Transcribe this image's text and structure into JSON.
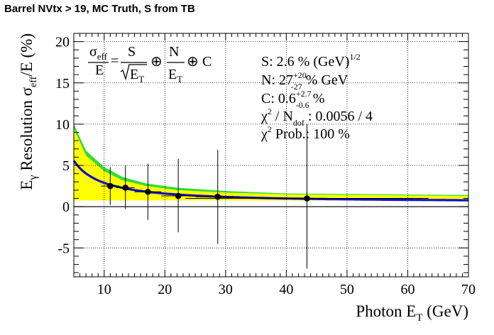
{
  "chart_data": {
    "type": "scatter",
    "title": "Barrel NVtx > 19, MC Truth, S from TB",
    "xlabel": {
      "main": "Photon E",
      "sub": "T",
      "unit": " (GeV)"
    },
    "ylabel": {
      "a": "E",
      "a_sub": "γ",
      "b": " Resolution σ",
      "b_sub": "eff",
      "c": "/E (%)"
    },
    "xlim": [
      5,
      70
    ],
    "ylim": [
      -8.5,
      21
    ],
    "x_ticks": [
      10,
      20,
      30,
      40,
      50,
      60,
      70
    ],
    "y_ticks": [
      -5,
      0,
      5,
      10,
      15,
      20
    ],
    "grid": true,
    "data_points": [
      {
        "x": 11.0,
        "y": 2.5,
        "xerr": 1.5,
        "yerr_low": 2.3,
        "yerr_high": 2.3
      },
      {
        "x": 13.5,
        "y": 2.3,
        "xerr": 1.5,
        "yerr_low": 2.6,
        "yerr_high": 2.7
      },
      {
        "x": 17.2,
        "y": 1.8,
        "xerr": 2.2,
        "yerr_low": 3.4,
        "yerr_high": 3.4
      },
      {
        "x": 22.2,
        "y": 1.3,
        "xerr": 2.8,
        "yerr_low": 4.4,
        "yerr_high": 4.5
      },
      {
        "x": 28.7,
        "y": 1.2,
        "xerr": 3.6,
        "yerr_low": 5.7,
        "yerr_high": 5.7
      },
      {
        "x": 43.4,
        "y": 1.0,
        "xerr": 20.0,
        "yerr_low": 8.5,
        "yerr_high": 9.0
      }
    ],
    "fit": {
      "S": 2.6,
      "N": 27,
      "C": 0.6
    },
    "band_inner": {
      "x": [
        5,
        7,
        10,
        13,
        17,
        22,
        30,
        40,
        70
      ],
      "low": [
        1.0,
        1.0,
        1.0,
        0.9,
        0.9,
        0.8,
        0.8,
        0.8,
        0.8
      ],
      "high": [
        9.5,
        6.2,
        4.3,
        3.2,
        2.5,
        2.0,
        1.7,
        1.5,
        1.3
      ]
    },
    "band_outer": {
      "x": [
        5,
        7,
        10,
        13,
        17,
        22,
        30,
        40,
        70
      ],
      "low": [
        0.9,
        0.9,
        0.9,
        0.85,
        0.85,
        0.8,
        0.75,
        0.75,
        0.75
      ],
      "high": [
        10.0,
        6.8,
        4.8,
        3.6,
        2.8,
        2.3,
        1.9,
        1.6,
        1.4
      ]
    },
    "formula": {
      "lhs_num": "σ",
      "lhs_num_sub": "eff",
      "lhs_den": "E",
      "eq": "=",
      "s_num": "S",
      "s_den": "E",
      "s_den_sub": "T",
      "oplus": "⊕",
      "n_num": "N",
      "n_den": "E",
      "n_den_sub": "T",
      "c": "C"
    },
    "legend": [
      {
        "pre": "S:  2.6 % (GeV)",
        "sup": "1/2"
      },
      {
        "pre": "N:  27",
        "sup": "+20",
        "sub": "-27",
        "post": " % GeV"
      },
      {
        "pre": "C:  0.6",
        "sup": "+2.7",
        "sub": "-0.6",
        "post": " %"
      },
      {
        "pre": "χ",
        "sup": "2",
        "mid": " / N",
        "sub": "dof",
        "post": " : 0.0056 / 4"
      },
      {
        "pre": "χ",
        "sup": "2",
        "post": " Prob.: 100 %"
      }
    ],
    "colors": {
      "fit": "#1010c8",
      "band_inner": "#ffff00",
      "band_outer": "#33dd33",
      "points": "#000000",
      "constant": "#ffff00"
    }
  }
}
